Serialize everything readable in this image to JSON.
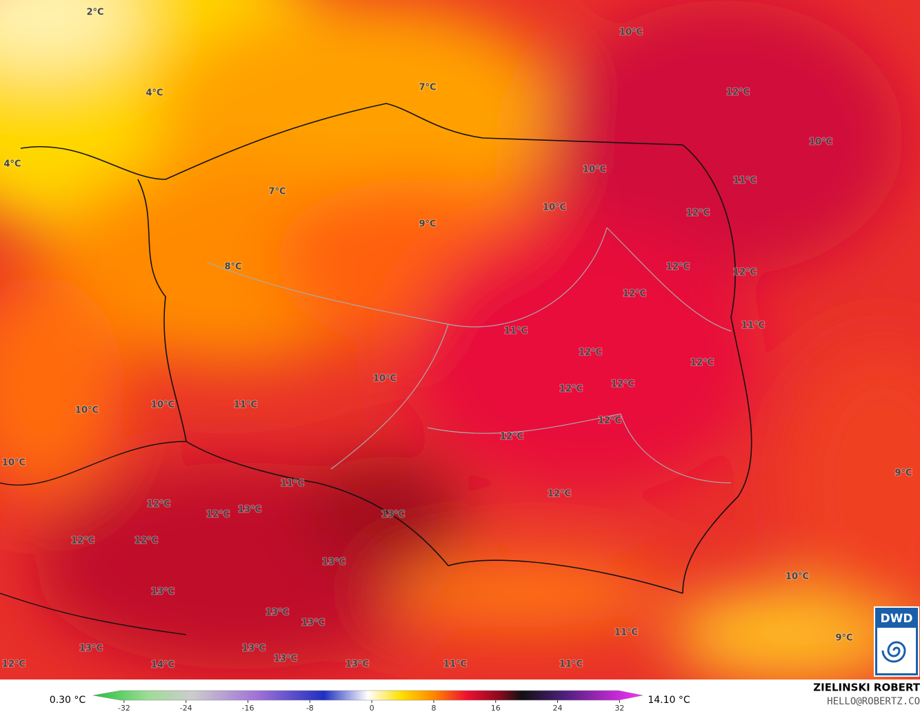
{
  "labels": [
    "2°C",
    "4°C",
    "4°C",
    "7°C",
    "7°C",
    "9°C",
    "10°C",
    "12°C",
    "10°C",
    "10°C",
    "11°C",
    "10°C",
    "12°C",
    "8°C",
    "12°C",
    "12°C",
    "12°C",
    "11°C",
    "11°C",
    "12°C",
    "12°C",
    "10°C",
    "12°C",
    "12°C",
    "10°C",
    "11°C",
    "10°C",
    "12°C",
    "12°C",
    "10°C",
    "9°C",
    "11°C",
    "12°C",
    "12°C",
    "12°C",
    "13°C",
    "13°C",
    "12°C",
    "12°C",
    "13°C",
    "10°C",
    "13°C",
    "13°C",
    "13°C",
    "11°C",
    "9°C",
    "13°C",
    "13°C",
    "13°C",
    "12°C",
    "14°C",
    "13°C",
    "11°C",
    "11°C"
  ],
  "colorbar": {
    "min_label": "0.30 °C",
    "max_label": "14.10 °C",
    "ticks": [
      -32,
      -24,
      -16,
      -8,
      0,
      8,
      16,
      24,
      32
    ],
    "lim": [
      -36,
      35
    ]
  },
  "credit": {
    "name": "ZIELINSKI ROBERT",
    "contact": "HELLO@ROBERTZ.CO"
  },
  "logo": "DWD"
}
